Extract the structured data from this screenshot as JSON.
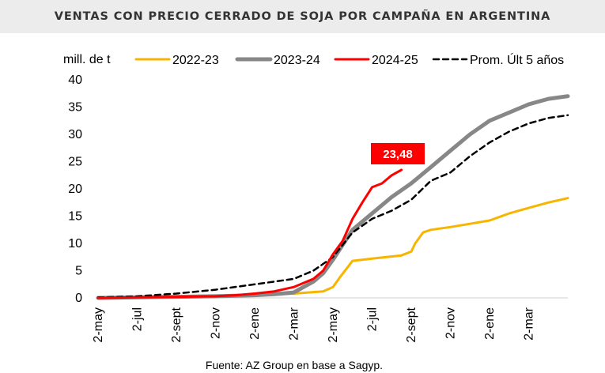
{
  "header": {
    "title": "VENTAS CON PRECIO CERRADO DE SOJA POR CAMPAÑA EN ARGENTINA"
  },
  "source": "Fuente: AZ Group en base a Sagyp.",
  "colors": {
    "s2022": "#F7B500",
    "s2023": "#878787",
    "s2024": "#FF0000",
    "prom": "#000000",
    "axis": "#d9d9d9"
  },
  "chart_data": {
    "type": "line",
    "title": "VENTAS CON PRECIO CERRADO DE SOJA POR CAMPAÑA EN ARGENTINA",
    "ylabel": "mill. de t",
    "xlabel": "",
    "ylim": [
      0,
      40
    ],
    "yticks": [
      "0",
      "5",
      "10",
      "15",
      "20",
      "25",
      "30",
      "35",
      "40"
    ],
    "xticks": [
      "2-may",
      "2-jul",
      "2-sept",
      "2-nov",
      "2-ene",
      "2-mar",
      "2-may",
      "2-jul",
      "2-sept",
      "2-nov",
      "2-ene",
      "2-mar"
    ],
    "x_unit": "months since 2-may",
    "grid": false,
    "legend_position": "top",
    "annotation": "23,48",
    "series": [
      {
        "name": "2022-23",
        "x": [
          0,
          2,
          4,
          6,
          8,
          10,
          11.5,
          12,
          12.4,
          13,
          14,
          15.5,
          16,
          16.2,
          16.6,
          17,
          18,
          19,
          20,
          21,
          22,
          23,
          24
        ],
        "y": [
          0,
          0.1,
          0.2,
          0.3,
          0.5,
          0.8,
          1.2,
          2.0,
          4.0,
          6.8,
          7.2,
          7.8,
          8.5,
          10,
          12,
          12.5,
          13.0,
          13.6,
          14.2,
          15.5,
          16.5,
          17.5,
          18.3
        ]
      },
      {
        "name": "2023-24",
        "x": [
          0,
          2,
          4,
          6,
          7,
          8,
          9,
          10,
          11,
          11.5,
          12,
          13,
          14,
          15,
          16,
          17,
          18,
          19,
          20,
          21,
          22,
          23,
          24
        ],
        "y": [
          0,
          0.1,
          0.2,
          0.3,
          0.4,
          0.5,
          0.7,
          1.0,
          3.0,
          4.5,
          7.0,
          12.5,
          15.5,
          18.5,
          21.0,
          24.0,
          27.0,
          30.0,
          32.5,
          34.0,
          35.5,
          36.5,
          37.0
        ]
      },
      {
        "name": "2024-25",
        "x": [
          0,
          2,
          4,
          6,
          7,
          8,
          9,
          10,
          11,
          11.5,
          12,
          12.5,
          13,
          13.5,
          14,
          14.5,
          15,
          15.5
        ],
        "y": [
          0,
          0.1,
          0.2,
          0.3,
          0.5,
          0.8,
          1.2,
          2.0,
          3.5,
          5.0,
          8.0,
          10.5,
          14.5,
          17.5,
          20.3,
          21.0,
          22.5,
          23.48
        ]
      },
      {
        "name": "Prom. Últ 5 años",
        "x": [
          0,
          2,
          4,
          6,
          8,
          10,
          11,
          12,
          13,
          14,
          15,
          16,
          17,
          18,
          19,
          20,
          21,
          22,
          23,
          24
        ],
        "y": [
          0.1,
          0.3,
          0.8,
          1.5,
          2.5,
          3.5,
          5.0,
          7.5,
          12.0,
          14.5,
          16.0,
          18.0,
          21.5,
          23.0,
          26.0,
          28.5,
          30.5,
          32.0,
          33.0,
          33.5
        ]
      }
    ]
  }
}
